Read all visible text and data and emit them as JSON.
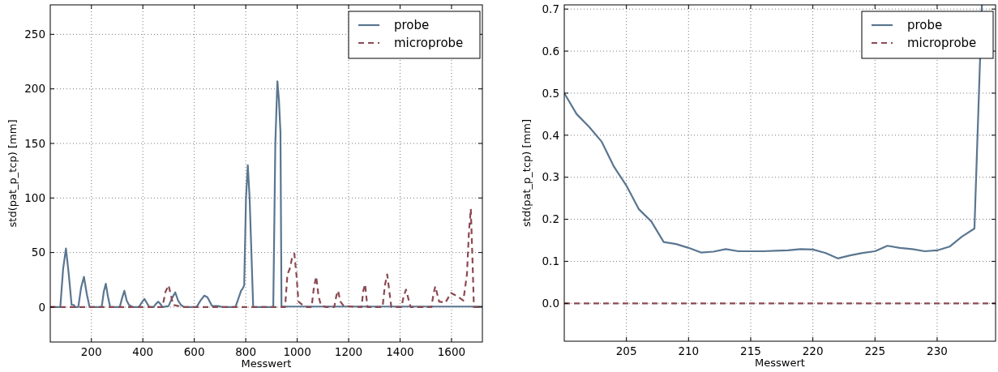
{
  "chart_data": [
    {
      "type": "line",
      "xlabel": "Messwert",
      "ylabel": "std(pat_p_tcp) [mm]",
      "xlim": [
        40,
        1720
      ],
      "ylim": [
        -32,
        277
      ],
      "xticks": [
        200,
        400,
        600,
        800,
        1000,
        1200,
        1400,
        1600
      ],
      "yticks": [
        0,
        50,
        100,
        150,
        200,
        250
      ],
      "grid": true,
      "legend": "top right",
      "series": [
        {
          "name": "probe",
          "color": "#5a7690",
          "line_style": "solid",
          "x": [
            40,
            79,
            90,
            101,
            112,
            123,
            131,
            137,
            149,
            160,
            171,
            182,
            193,
            240,
            248,
            256,
            264,
            273,
            310,
            319,
            328,
            337,
            346,
            360,
            385,
            395,
            406,
            415,
            425,
            442,
            451,
            460,
            468,
            476,
            500,
            513,
            526,
            537,
            548,
            560,
            609,
            624,
            639,
            651,
            669,
            693,
            710,
            760,
            782,
            788,
            794,
            801,
            808,
            815,
            829,
            907,
            915,
            923,
            929,
            935,
            939,
            960,
            1720
          ],
          "values": [
            0,
            0,
            35,
            53.7,
            30,
            2,
            2,
            0,
            0,
            18,
            27.7,
            12,
            0,
            0,
            14,
            21.4,
            10,
            0,
            0,
            8,
            15,
            6,
            2,
            0,
            0,
            4,
            7.5,
            4,
            0,
            0,
            3,
            5,
            3,
            0,
            1,
            8,
            13.5,
            6,
            2,
            0,
            0,
            6,
            10.5,
            9,
            1,
            1,
            0,
            0,
            15,
            17,
            20,
            100,
            130,
            100,
            0,
            0,
            150,
            207,
            190,
            160,
            0.5,
            0.5,
            0.5
          ]
        },
        {
          "name": "microprobe",
          "color": "#8b4a52",
          "line_style": "dashed",
          "x": [
            40,
            476,
            488,
            500,
            510,
            518,
            560,
            953,
            962,
            971,
            980,
            989,
            997,
            1005,
            1026,
            1040,
            1056,
            1065,
            1074,
            1083,
            1092,
            1110,
            1144,
            1152,
            1159,
            1168,
            1181,
            1250,
            1257,
            1264,
            1273,
            1332,
            1341,
            1350,
            1358,
            1366,
            1405,
            1414,
            1423,
            1432,
            1441,
            1522,
            1530,
            1537,
            1552,
            1576,
            1598,
            1622,
            1646,
            1660,
            1668,
            1675,
            1682,
            1687,
            1720
          ],
          "values": [
            0,
            0,
            14,
            20,
            10,
            2,
            0,
            0,
            30,
            35,
            45,
            49,
            30,
            5,
            1,
            0,
            0,
            18,
            28,
            10,
            2,
            0,
            0,
            10,
            15,
            5,
            1,
            0,
            15,
            21,
            0,
            0,
            20,
            30,
            15,
            0,
            0,
            10,
            16,
            8,
            0,
            0,
            12,
            19,
            5,
            4,
            13,
            10,
            6,
            30,
            70,
            90,
            40,
            0,
            0
          ]
        }
      ]
    },
    {
      "type": "line",
      "xlabel": "Messwert",
      "ylabel": "std(pat_p_tcp) [mm]",
      "xlim": [
        200,
        234.7
      ],
      "ylim": [
        -0.09,
        0.71
      ],
      "xticks": [
        205,
        210,
        215,
        220,
        225,
        230
      ],
      "yticks": [
        {
          "value": 0,
          "label": "0.0"
        },
        {
          "value": 0.1,
          "label": "0.1"
        },
        {
          "value": 0.2,
          "label": "0.2"
        },
        {
          "value": 0.3,
          "label": "0.3"
        },
        {
          "value": 0.4,
          "label": "0.4"
        },
        {
          "value": 0.5,
          "label": "0.5"
        },
        {
          "value": 0.6,
          "label": "0.6"
        },
        {
          "value": 0.7,
          "label": "0.7"
        }
      ],
      "grid": true,
      "legend": "top right",
      "series": [
        {
          "name": "probe",
          "color": "#5a7690",
          "line_style": "solid",
          "x": [
            200,
            201,
            202,
            203,
            204,
            205,
            206,
            207,
            208,
            209,
            210,
            211,
            212,
            213,
            214,
            215,
            216,
            217,
            218,
            219,
            220,
            221,
            222,
            223,
            224,
            225,
            226,
            227,
            228,
            229,
            230,
            231,
            232,
            233,
            233.6
          ],
          "values": [
            0.5,
            0.45,
            0.42,
            0.385,
            0.325,
            0.28,
            0.224,
            0.195,
            0.146,
            0.141,
            0.132,
            0.121,
            0.123,
            0.129,
            0.124,
            0.124,
            0.124,
            0.125,
            0.126,
            0.129,
            0.128,
            0.12,
            0.107,
            0.114,
            0.12,
            0.124,
            0.137,
            0.132,
            0.129,
            0.124,
            0.126,
            0.135,
            0.159,
            0.178,
            0.71
          ]
        },
        {
          "name": "microprobe",
          "color": "#8b4a52",
          "line_style": "dashed",
          "x": [
            200,
            234.7
          ],
          "values": [
            0,
            0
          ]
        }
      ]
    }
  ]
}
